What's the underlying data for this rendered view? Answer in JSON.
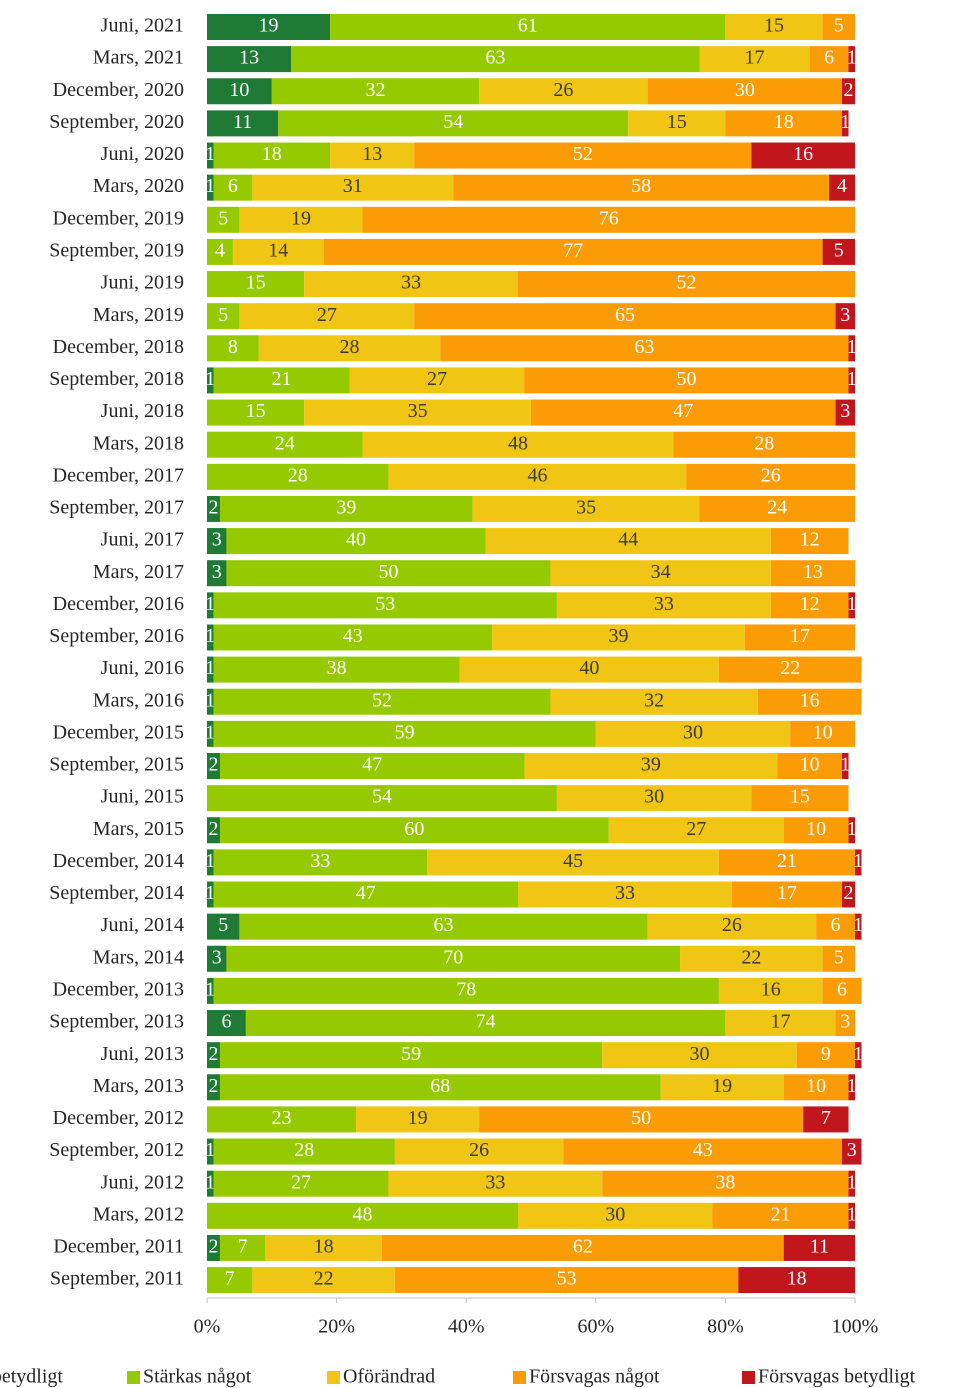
{
  "chart_data": {
    "type": "stacked_bar_horizontal",
    "categories": [
      "Juni, 2021",
      "Mars, 2021",
      "December, 2020",
      "September, 2020",
      "Juni, 2020",
      "Mars, 2020",
      "December, 2019",
      "September, 2019",
      "Juni, 2019",
      "Mars, 2019",
      "December, 2018",
      "September, 2018",
      "Juni, 2018",
      "Mars, 2018",
      "December, 2017",
      "September, 2017",
      "Juni, 2017",
      "Mars, 2017",
      "December, 2016",
      "September, 2016",
      "Juni, 2016",
      "Mars, 2016",
      "December, 2015",
      "September, 2015",
      "Juni, 2015",
      "Mars, 2015",
      "December, 2014",
      "September, 2014",
      "Juni, 2014",
      "Mars, 2014",
      "December, 2013",
      "September, 2013",
      "Juni, 2013",
      "Mars, 2013",
      "December, 2012",
      "September, 2012",
      "Juni, 2012",
      "Mars, 2012",
      "December, 2011",
      "September, 2011"
    ],
    "series": [
      {
        "name": "Stärkas betydligt",
        "color": "#1f7a35",
        "values": [
          19,
          13,
          10,
          11,
          1,
          1,
          null,
          null,
          null,
          null,
          null,
          1,
          null,
          null,
          null,
          2,
          3,
          3,
          1,
          1,
          1,
          1,
          1,
          2,
          null,
          2,
          1,
          1,
          5,
          3,
          1,
          6,
          2,
          2,
          null,
          1,
          1,
          null,
          2,
          null
        ]
      },
      {
        "name": "Stärkas något",
        "color": "#95c900",
        "values": [
          61,
          63,
          32,
          54,
          18,
          6,
          5,
          4,
          15,
          5,
          8,
          21,
          15,
          24,
          28,
          39,
          40,
          50,
          53,
          43,
          38,
          52,
          59,
          47,
          54,
          60,
          33,
          47,
          63,
          70,
          78,
          74,
          59,
          68,
          23,
          28,
          27,
          48,
          7,
          7
        ]
      },
      {
        "name": "Oförändrad",
        "color": "#f0c514",
        "values": [
          15,
          17,
          26,
          15,
          13,
          31,
          19,
          14,
          33,
          27,
          28,
          27,
          35,
          48,
          46,
          35,
          44,
          34,
          33,
          39,
          40,
          32,
          30,
          39,
          30,
          27,
          45,
          33,
          26,
          22,
          16,
          17,
          30,
          19,
          19,
          26,
          33,
          30,
          18,
          22
        ]
      },
      {
        "name": "Försvagas något",
        "color": "#fb9b05",
        "values": [
          5,
          6,
          30,
          18,
          52,
          58,
          76,
          77,
          52,
          65,
          63,
          50,
          47,
          28,
          26,
          24,
          12,
          13,
          12,
          17,
          22,
          16,
          10,
          10,
          15,
          10,
          21,
          17,
          6,
          5,
          6,
          3,
          9,
          10,
          50,
          43,
          38,
          21,
          62,
          53
        ]
      },
      {
        "name": "Försvagas betydligt",
        "color": "#c0161c",
        "values": [
          null,
          1,
          2,
          1,
          16,
          4,
          null,
          5,
          null,
          3,
          1,
          1,
          3,
          null,
          null,
          null,
          null,
          null,
          1,
          null,
          null,
          null,
          null,
          1,
          null,
          1,
          1,
          2,
          1,
          null,
          null,
          null,
          1,
          1,
          7,
          3,
          1,
          1,
          11,
          18
        ]
      }
    ],
    "xlim": [
      0,
      100
    ],
    "xticks": [
      {
        "value": 0,
        "label": "0%"
      },
      {
        "value": 20,
        "label": "20%"
      },
      {
        "value": 40,
        "label": "40%"
      },
      {
        "value": 60,
        "label": "60%"
      },
      {
        "value": 80,
        "label": "80%"
      },
      {
        "value": 100,
        "label": "100%"
      }
    ],
    "legend": "bottom"
  }
}
